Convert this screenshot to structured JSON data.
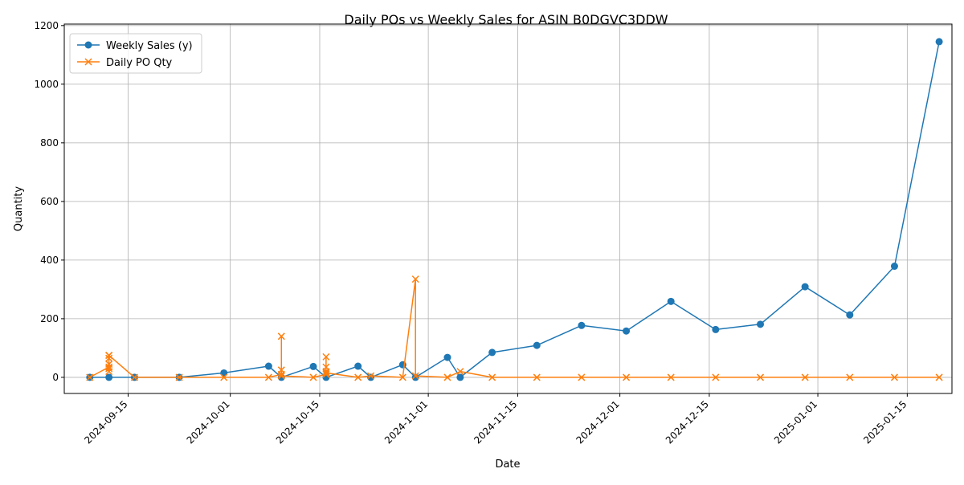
{
  "chart_data": {
    "type": "line",
    "title": "Daily POs vs Weekly Sales for ASIN B0DGVC3DDW",
    "xlabel": "Date",
    "ylabel": "Quantity",
    "xlim": [
      "2024-09-05",
      "2025-01-22"
    ],
    "ylim": [
      -55,
      1205
    ],
    "grid": true,
    "legend_position": "top-left",
    "x_ticks": [
      "2024-09-15",
      "2024-10-01",
      "2024-10-15",
      "2024-11-01",
      "2024-11-15",
      "2024-12-01",
      "2024-12-15",
      "2025-01-01",
      "2025-01-15"
    ],
    "y_ticks": [
      0,
      200,
      400,
      600,
      800,
      1000,
      1200
    ],
    "series": [
      {
        "name": "Weekly Sales (y)",
        "color": "#1f77b4",
        "marker": "circle",
        "points": [
          [
            "2024-09-09",
            0
          ],
          [
            "2024-09-12",
            0
          ],
          [
            "2024-09-16",
            0
          ],
          [
            "2024-09-23",
            0
          ],
          [
            "2024-09-30",
            15
          ],
          [
            "2024-10-07",
            38
          ],
          [
            "2024-10-09",
            0
          ],
          [
            "2024-10-14",
            37
          ],
          [
            "2024-10-16",
            0
          ],
          [
            "2024-10-21",
            38
          ],
          [
            "2024-10-23",
            0
          ],
          [
            "2024-10-28",
            43
          ],
          [
            "2024-10-30",
            0
          ],
          [
            "2024-11-04",
            68
          ],
          [
            "2024-11-06",
            0
          ],
          [
            "2024-11-11",
            85
          ],
          [
            "2024-11-18",
            109
          ],
          [
            "2024-11-25",
            177
          ],
          [
            "2024-12-02",
            158
          ],
          [
            "2024-12-09",
            259
          ],
          [
            "2024-12-16",
            163
          ],
          [
            "2024-12-23",
            181
          ],
          [
            "2024-12-30",
            309
          ],
          [
            "2025-01-06",
            213
          ],
          [
            "2025-01-13",
            379
          ],
          [
            "2025-01-20",
            1145
          ]
        ]
      },
      {
        "name": "Daily PO Qty",
        "color": "#ff7f0e",
        "marker": "x",
        "points": [
          [
            "2024-09-09",
            0
          ],
          [
            "2024-09-12",
            35
          ],
          [
            "2024-09-12",
            75
          ],
          [
            "2024-09-12",
            65
          ],
          [
            "2024-09-12",
            45
          ],
          [
            "2024-09-12",
            30
          ],
          [
            "2024-09-12",
            20
          ],
          [
            "2024-09-12",
            75
          ],
          [
            "2024-09-16",
            0
          ],
          [
            "2024-09-23",
            0
          ],
          [
            "2024-09-30",
            0
          ],
          [
            "2024-10-07",
            0
          ],
          [
            "2024-10-09",
            10
          ],
          [
            "2024-10-09",
            140
          ],
          [
            "2024-10-09",
            25
          ],
          [
            "2024-10-09",
            5
          ],
          [
            "2024-10-14",
            0
          ],
          [
            "2024-10-16",
            10
          ],
          [
            "2024-10-16",
            70
          ],
          [
            "2024-10-16",
            35
          ],
          [
            "2024-10-16",
            20
          ],
          [
            "2024-10-16",
            15
          ],
          [
            "2024-10-21",
            0
          ],
          [
            "2024-10-23",
            5
          ],
          [
            "2024-10-28",
            0
          ],
          [
            "2024-10-30",
            335
          ],
          [
            "2024-10-30",
            5
          ],
          [
            "2024-11-04",
            0
          ],
          [
            "2024-11-06",
            20
          ],
          [
            "2024-11-11",
            0
          ],
          [
            "2024-11-18",
            0
          ],
          [
            "2024-11-25",
            0
          ],
          [
            "2024-12-02",
            0
          ],
          [
            "2024-12-09",
            0
          ],
          [
            "2024-12-16",
            0
          ],
          [
            "2024-12-23",
            0
          ],
          [
            "2024-12-30",
            0
          ],
          [
            "2025-01-06",
            0
          ],
          [
            "2025-01-13",
            0
          ],
          [
            "2025-01-20",
            0
          ]
        ]
      }
    ]
  }
}
